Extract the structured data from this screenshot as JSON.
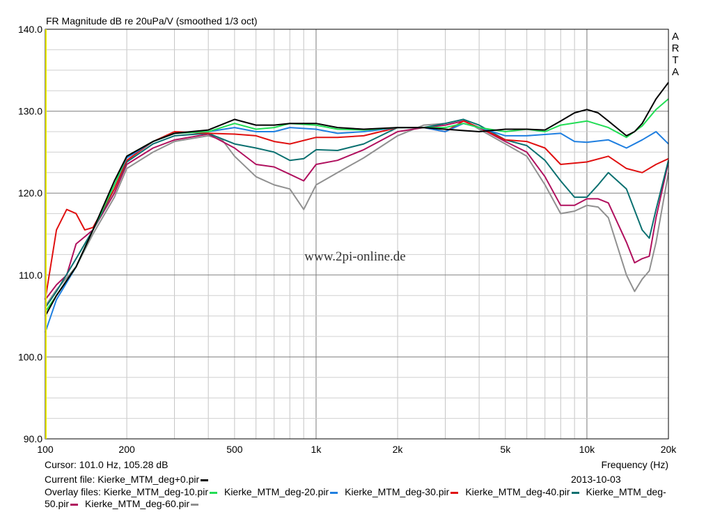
{
  "chart_data": {
    "type": "line",
    "title": "FR Magnitude dB re 20uPa/V (smoothed 1/3 oct)",
    "brand": "A R T A",
    "watermark": "www.2pi-online.de",
    "xlabel": "Frequency (Hz)",
    "xscale": "log",
    "xlim": [
      100,
      20000
    ],
    "ylim": [
      90,
      140
    ],
    "grid": true,
    "x_tick_labels": [
      {
        "value": 100,
        "label": "100"
      },
      {
        "value": 200,
        "label": "200"
      },
      {
        "value": 500,
        "label": "500"
      },
      {
        "value": 1000,
        "label": "1k"
      },
      {
        "value": 2000,
        "label": "2k"
      },
      {
        "value": 5000,
        "label": "5k"
      },
      {
        "value": 10000,
        "label": "10k"
      },
      {
        "value": 20000,
        "label": "20k"
      }
    ],
    "y_tick_labels": [
      {
        "value": 90,
        "label": "90.0"
      },
      {
        "value": 100,
        "label": "100.0"
      },
      {
        "value": 110,
        "label": "110.0"
      },
      {
        "value": 120,
        "label": "120.0"
      },
      {
        "value": 130,
        "label": "130.0"
      },
      {
        "value": 140,
        "label": "140.0"
      }
    ],
    "series": [
      {
        "name": "Kierke_MTM_deg+0.pir",
        "color": "#000000",
        "points": [
          [
            100,
            105
          ],
          [
            110,
            107.5
          ],
          [
            130,
            111
          ],
          [
            150,
            115.5
          ],
          [
            180,
            121.5
          ],
          [
            200,
            124.5
          ],
          [
            250,
            126.3
          ],
          [
            300,
            127.3
          ],
          [
            400,
            127.7
          ],
          [
            500,
            129
          ],
          [
            600,
            128.3
          ],
          [
            700,
            128.3
          ],
          [
            800,
            128.5
          ],
          [
            1000,
            128.5
          ],
          [
            1200,
            128
          ],
          [
            1500,
            127.8
          ],
          [
            2000,
            128
          ],
          [
            2500,
            128
          ],
          [
            3000,
            127.8
          ],
          [
            4000,
            127.5
          ],
          [
            5000,
            127.8
          ],
          [
            6000,
            127.8
          ],
          [
            7000,
            127.7
          ],
          [
            8000,
            128.8
          ],
          [
            9000,
            129.8
          ],
          [
            10000,
            130.2
          ],
          [
            11000,
            129.8
          ],
          [
            12000,
            128.8
          ],
          [
            14000,
            127
          ],
          [
            15000,
            127.5
          ],
          [
            16000,
            128.5
          ],
          [
            18000,
            131.5
          ],
          [
            20000,
            133.5
          ]
        ]
      },
      {
        "name": "Kierke_MTM_deg-10.pir",
        "color": "#22dd55",
        "points": [
          [
            100,
            105.5
          ],
          [
            110,
            107.5
          ],
          [
            130,
            111
          ],
          [
            150,
            115.5
          ],
          [
            180,
            121
          ],
          [
            200,
            124.5
          ],
          [
            250,
            126.3
          ],
          [
            300,
            127.3
          ],
          [
            400,
            127.5
          ],
          [
            500,
            128.5
          ],
          [
            600,
            127.8
          ],
          [
            700,
            128
          ],
          [
            800,
            128.5
          ],
          [
            1000,
            128.3
          ],
          [
            1200,
            127.8
          ],
          [
            1500,
            127.7
          ],
          [
            2000,
            128
          ],
          [
            2500,
            128
          ],
          [
            3000,
            128
          ],
          [
            3500,
            128.5
          ],
          [
            4000,
            128
          ],
          [
            5000,
            127.5
          ],
          [
            6000,
            127.8
          ],
          [
            7000,
            127.5
          ],
          [
            8000,
            128.3
          ],
          [
            10000,
            128.8
          ],
          [
            12000,
            128
          ],
          [
            14000,
            126.8
          ],
          [
            16000,
            128.2
          ],
          [
            18000,
            130.2
          ],
          [
            20000,
            131.5
          ]
        ]
      },
      {
        "name": "Kierke_MTM_deg-20.pir",
        "color": "#1f7fe0",
        "points": [
          [
            100,
            103
          ],
          [
            110,
            107
          ],
          [
            130,
            111
          ],
          [
            150,
            115.5
          ],
          [
            180,
            121
          ],
          [
            200,
            124.3
          ],
          [
            250,
            126.3
          ],
          [
            300,
            127.3
          ],
          [
            400,
            127.5
          ],
          [
            500,
            128
          ],
          [
            600,
            127.5
          ],
          [
            700,
            127.5
          ],
          [
            800,
            128
          ],
          [
            1000,
            127.8
          ],
          [
            1200,
            127.3
          ],
          [
            1500,
            127.5
          ],
          [
            2000,
            128
          ],
          [
            2500,
            128
          ],
          [
            3000,
            127.5
          ],
          [
            3500,
            128.5
          ],
          [
            4000,
            128
          ],
          [
            5000,
            127
          ],
          [
            6000,
            127
          ],
          [
            8000,
            127.3
          ],
          [
            9000,
            126.3
          ],
          [
            10000,
            126.2
          ],
          [
            12000,
            126.5
          ],
          [
            14000,
            125.5
          ],
          [
            16000,
            126.5
          ],
          [
            18000,
            127.5
          ],
          [
            20000,
            126
          ]
        ]
      },
      {
        "name": "Kierke_MTM_deg-30.pir",
        "color": "#e01010",
        "points": [
          [
            100,
            107
          ],
          [
            110,
            115.5
          ],
          [
            120,
            118
          ],
          [
            130,
            117.5
          ],
          [
            140,
            115.5
          ],
          [
            150,
            115.8
          ],
          [
            180,
            120.5
          ],
          [
            200,
            124
          ],
          [
            250,
            126.3
          ],
          [
            300,
            127.5
          ],
          [
            400,
            127.3
          ],
          [
            500,
            127.2
          ],
          [
            600,
            127
          ],
          [
            700,
            126.3
          ],
          [
            800,
            126
          ],
          [
            1000,
            126.8
          ],
          [
            1200,
            126.8
          ],
          [
            1500,
            127
          ],
          [
            2000,
            128
          ],
          [
            2500,
            128
          ],
          [
            3000,
            127.5
          ],
          [
            3500,
            128.8
          ],
          [
            4000,
            128
          ],
          [
            5000,
            126.5
          ],
          [
            6000,
            126.3
          ],
          [
            7000,
            125.5
          ],
          [
            8000,
            123.5
          ],
          [
            10000,
            123.8
          ],
          [
            12000,
            124.5
          ],
          [
            14000,
            123
          ],
          [
            16000,
            122.5
          ],
          [
            18000,
            123.5
          ],
          [
            20000,
            124.2
          ]
        ]
      },
      {
        "name": "Kierke_MTM_deg-40.pir",
        "color": "#0a7070",
        "points": [
          [
            100,
            106
          ],
          [
            110,
            108
          ],
          [
            130,
            112
          ],
          [
            150,
            115.5
          ],
          [
            180,
            120.5
          ],
          [
            200,
            123.8
          ],
          [
            250,
            126
          ],
          [
            300,
            127
          ],
          [
            400,
            127.3
          ],
          [
            500,
            126
          ],
          [
            600,
            125.5
          ],
          [
            700,
            125
          ],
          [
            800,
            124
          ],
          [
            900,
            124.2
          ],
          [
            1000,
            125.3
          ],
          [
            1200,
            125.2
          ],
          [
            1500,
            126
          ],
          [
            2000,
            128
          ],
          [
            2500,
            128
          ],
          [
            3000,
            128.5
          ],
          [
            3500,
            129
          ],
          [
            4000,
            128.3
          ],
          [
            5000,
            126.5
          ],
          [
            6000,
            125.8
          ],
          [
            7000,
            124
          ],
          [
            8000,
            121.5
          ],
          [
            9000,
            119.5
          ],
          [
            10000,
            119.5
          ],
          [
            11000,
            121
          ],
          [
            12000,
            122.5
          ],
          [
            14000,
            120.5
          ],
          [
            16000,
            115.5
          ],
          [
            17000,
            114.5
          ],
          [
            18000,
            118
          ],
          [
            20000,
            124
          ]
        ]
      },
      {
        "name": "Kierke_MTM_deg-50.pir",
        "color": "#b0105e",
        "points": [
          [
            100,
            107
          ],
          [
            110,
            108.8
          ],
          [
            120,
            110
          ],
          [
            130,
            113.8
          ],
          [
            150,
            115.5
          ],
          [
            180,
            120
          ],
          [
            200,
            123.5
          ],
          [
            250,
            125.5
          ],
          [
            300,
            126.5
          ],
          [
            400,
            127.2
          ],
          [
            500,
            125.5
          ],
          [
            600,
            123.5
          ],
          [
            700,
            123.2
          ],
          [
            800,
            122.3
          ],
          [
            900,
            121.5
          ],
          [
            1000,
            123.5
          ],
          [
            1200,
            124
          ],
          [
            1500,
            125.3
          ],
          [
            2000,
            127.5
          ],
          [
            2500,
            128
          ],
          [
            3000,
            128.3
          ],
          [
            3500,
            128.8
          ],
          [
            4000,
            128
          ],
          [
            5000,
            126.3
          ],
          [
            6000,
            125
          ],
          [
            7000,
            122
          ],
          [
            8000,
            118.5
          ],
          [
            9000,
            118.5
          ],
          [
            10000,
            119.3
          ],
          [
            11000,
            119.3
          ],
          [
            12000,
            118.8
          ],
          [
            14000,
            114
          ],
          [
            15000,
            111.5
          ],
          [
            16000,
            112
          ],
          [
            17000,
            112.3
          ],
          [
            18000,
            117
          ],
          [
            20000,
            123.8
          ]
        ]
      },
      {
        "name": "Kierke_MTM_deg-60.pir",
        "color": "#909090",
        "points": [
          [
            100,
            106.2
          ],
          [
            110,
            108.2
          ],
          [
            130,
            111
          ],
          [
            150,
            115
          ],
          [
            180,
            119.5
          ],
          [
            200,
            123
          ],
          [
            250,
            125
          ],
          [
            300,
            126.3
          ],
          [
            400,
            127
          ],
          [
            450,
            126.5
          ],
          [
            500,
            124.5
          ],
          [
            600,
            122
          ],
          [
            700,
            121
          ],
          [
            800,
            120.5
          ],
          [
            900,
            118
          ],
          [
            1000,
            121
          ],
          [
            1200,
            122.5
          ],
          [
            1500,
            124.3
          ],
          [
            2000,
            127
          ],
          [
            2500,
            128.3
          ],
          [
            3000,
            128.5
          ],
          [
            3500,
            129
          ],
          [
            4000,
            127.8
          ],
          [
            5000,
            126
          ],
          [
            6000,
            124.5
          ],
          [
            7000,
            121
          ],
          [
            8000,
            117.5
          ],
          [
            9000,
            117.8
          ],
          [
            10000,
            118.5
          ],
          [
            11000,
            118.3
          ],
          [
            12000,
            117
          ],
          [
            14000,
            110
          ],
          [
            15000,
            108
          ],
          [
            16000,
            109.5
          ],
          [
            17000,
            110.5
          ],
          [
            18000,
            114
          ],
          [
            20000,
            122.5
          ]
        ]
      }
    ]
  },
  "status": {
    "cursor": "Cursor: 101.0 Hz, 105.28 dB",
    "current_file_label": "Current file: ",
    "current_file": "Kierke_MTM_deg+0.pir",
    "overlay_label": "Overlay files: ",
    "overlay_files": [
      "Kierke_MTM_deg-10.pir",
      "Kierke_MTM_deg-20.pir",
      "Kierke_MTM_deg-30.pir",
      "Kierke_MTM_deg-40.pir",
      "Kierke_MTM_deg-50.pir",
      "Kierke_MTM_deg-60.pir"
    ],
    "date": "2013-10-03"
  }
}
